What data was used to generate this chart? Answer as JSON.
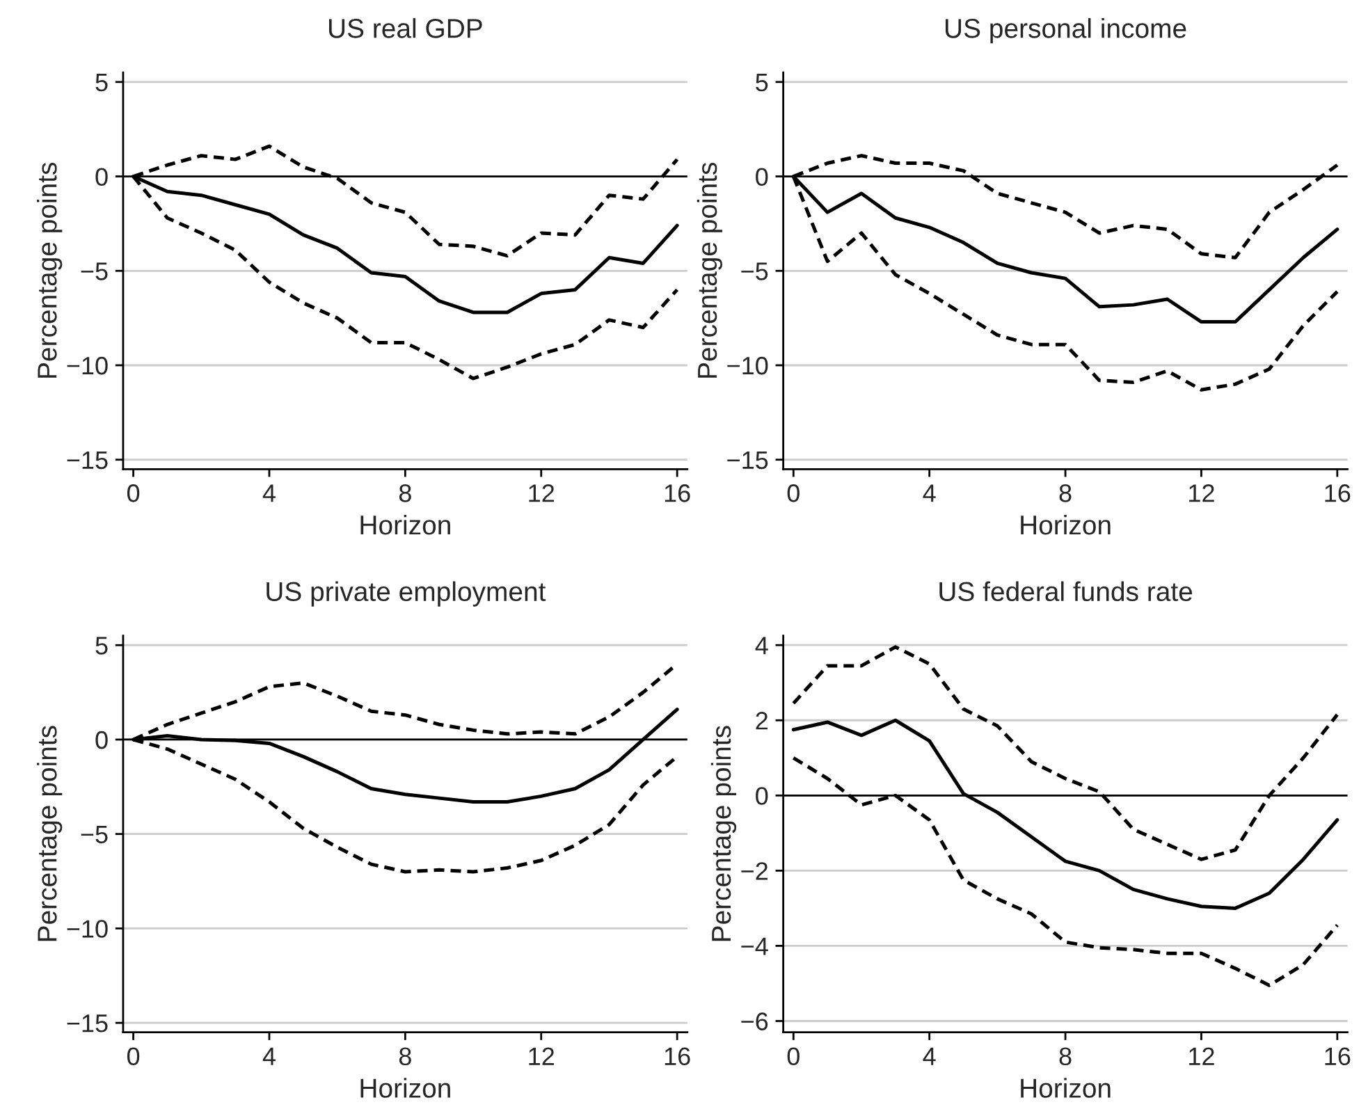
{
  "chart_data": [
    {
      "type": "line",
      "title": "US real GDP",
      "xlabel": "Horizon",
      "ylabel": "Percentage points",
      "x": [
        0,
        1,
        2,
        3,
        4,
        5,
        6,
        7,
        8,
        9,
        10,
        11,
        12,
        13,
        14,
        15,
        16
      ],
      "series": [
        {
          "color": "#000000",
          "line_style": "solid",
          "values": [
            0,
            -0.8,
            -1.0,
            -1.5,
            -2.0,
            -3.1,
            -3.8,
            -5.1,
            -5.3,
            -6.6,
            -7.2,
            -7.2,
            -6.2,
            -6.0,
            -4.3,
            -4.6,
            -2.6
          ]
        },
        {
          "color": "#000000",
          "line_style": "dashed",
          "values": [
            0,
            0.6,
            1.1,
            0.9,
            1.6,
            0.5,
            -0.1,
            -1.4,
            -1.9,
            -3.6,
            -3.7,
            -4.2,
            -3.0,
            -3.1,
            -1.0,
            -1.2,
            0.9
          ]
        },
        {
          "color": "#000000",
          "line_style": "dashed",
          "values": [
            0,
            -2.2,
            -3.0,
            -3.9,
            -5.6,
            -6.7,
            -7.5,
            -8.8,
            -8.8,
            -9.7,
            -10.7,
            -10.1,
            -9.4,
            -8.9,
            -7.6,
            -8.0,
            -6.0
          ]
        }
      ],
      "xlim": [
        -0.3,
        16.3
      ],
      "xticks": [
        0,
        4,
        8,
        12,
        16
      ],
      "ylim": [
        -15.5,
        5.5
      ],
      "yticks": [
        {
          "value": -15,
          "label": "−15"
        },
        {
          "value": -10,
          "label": "−10"
        },
        {
          "value": -5,
          "label": "−5"
        },
        0,
        5
      ],
      "ref_lines": [
        {
          "axis": "y",
          "value": 0,
          "color": "#000000"
        }
      ],
      "grid": "y"
    },
    {
      "type": "line",
      "title": "US personal income",
      "xlabel": "Horizon",
      "ylabel": "Percentage points",
      "x": [
        0,
        1,
        2,
        3,
        4,
        5,
        6,
        7,
        8,
        9,
        10,
        11,
        12,
        13,
        14,
        15,
        16
      ],
      "series": [
        {
          "color": "#000000",
          "line_style": "solid",
          "values": [
            0,
            -1.9,
            -0.9,
            -2.2,
            -2.7,
            -3.5,
            -4.6,
            -5.1,
            -5.4,
            -6.9,
            -6.8,
            -6.5,
            -7.7,
            -7.7,
            -6.0,
            -4.3,
            -2.8
          ]
        },
        {
          "color": "#000000",
          "line_style": "dashed",
          "values": [
            0,
            0.7,
            1.1,
            0.7,
            0.7,
            0.3,
            -0.9,
            -1.4,
            -1.9,
            -3.0,
            -2.6,
            -2.8,
            -4.1,
            -4.3,
            -1.9,
            -0.7,
            0.6
          ]
        },
        {
          "color": "#000000",
          "line_style": "dashed",
          "values": [
            0,
            -4.5,
            -3.0,
            -5.2,
            -6.2,
            -7.3,
            -8.4,
            -8.9,
            -8.9,
            -10.8,
            -10.9,
            -10.3,
            -11.3,
            -11.0,
            -10.2,
            -7.9,
            -6.1
          ]
        }
      ],
      "xlim": [
        -0.3,
        16.3
      ],
      "xticks": [
        0,
        4,
        8,
        12,
        16
      ],
      "ylim": [
        -15.5,
        5.5
      ],
      "yticks": [
        {
          "value": -15,
          "label": "−15"
        },
        {
          "value": -10,
          "label": "−10"
        },
        {
          "value": -5,
          "label": "−5"
        },
        0,
        5
      ],
      "ref_lines": [
        {
          "axis": "y",
          "value": 0,
          "color": "#000000"
        }
      ],
      "grid": "y"
    },
    {
      "type": "line",
      "title": "US private employment",
      "xlabel": "Horizon",
      "ylabel": "Percentage points",
      "x": [
        0,
        1,
        2,
        3,
        4,
        5,
        6,
        7,
        8,
        9,
        10,
        11,
        12,
        13,
        14,
        15,
        16
      ],
      "series": [
        {
          "color": "#000000",
          "line_style": "solid",
          "values": [
            0,
            0.2,
            0,
            -0.05,
            -0.2,
            -0.9,
            -1.7,
            -2.6,
            -2.9,
            -3.1,
            -3.3,
            -3.3,
            -3.0,
            -2.6,
            -1.6,
            0.0,
            1.6
          ]
        },
        {
          "color": "#000000",
          "line_style": "dashed",
          "values": [
            0,
            0.8,
            1.4,
            2.0,
            2.8,
            3.0,
            2.3,
            1.5,
            1.3,
            0.8,
            0.5,
            0.3,
            0.4,
            0.3,
            1.2,
            2.5,
            4.0
          ]
        },
        {
          "color": "#000000",
          "line_style": "dashed",
          "values": [
            0,
            -0.5,
            -1.3,
            -2.1,
            -3.3,
            -4.7,
            -5.7,
            -6.6,
            -7.0,
            -6.9,
            -7.0,
            -6.8,
            -6.4,
            -5.6,
            -4.5,
            -2.4,
            -0.9
          ]
        }
      ],
      "xlim": [
        -0.3,
        16.3
      ],
      "xticks": [
        0,
        4,
        8,
        12,
        16
      ],
      "ylim": [
        -15.5,
        5.5
      ],
      "yticks": [
        {
          "value": -15,
          "label": "−15"
        },
        {
          "value": -10,
          "label": "−10"
        },
        {
          "value": -5,
          "label": "−5"
        },
        0,
        5
      ],
      "ref_lines": [
        {
          "axis": "y",
          "value": 0,
          "color": "#000000"
        }
      ],
      "grid": "y"
    },
    {
      "type": "line",
      "title": "US federal funds rate",
      "xlabel": "Horizon",
      "ylabel": "Percentage points",
      "x": [
        0,
        1,
        2,
        3,
        4,
        5,
        6,
        7,
        8,
        9,
        10,
        11,
        12,
        13,
        14,
        15,
        16
      ],
      "series": [
        {
          "color": "#000000",
          "line_style": "solid",
          "values": [
            1.75,
            1.95,
            1.6,
            2.0,
            1.45,
            0.05,
            -0.45,
            -1.1,
            -1.75,
            -2.0,
            -2.5,
            -2.75,
            -2.95,
            -3.0,
            -2.6,
            -1.7,
            -0.65
          ]
        },
        {
          "color": "#000000",
          "line_style": "dashed",
          "values": [
            2.45,
            3.45,
            3.45,
            3.95,
            3.5,
            2.3,
            1.85,
            0.9,
            0.45,
            0.1,
            -0.9,
            -1.3,
            -1.7,
            -1.45,
            0.0,
            1.0,
            2.15
          ]
        },
        {
          "color": "#000000",
          "line_style": "dashed",
          "values": [
            1.0,
            0.45,
            -0.25,
            0.0,
            -0.65,
            -2.25,
            -2.75,
            -3.15,
            -3.9,
            -4.05,
            -4.1,
            -4.2,
            -4.2,
            -4.6,
            -5.05,
            -4.5,
            -3.45
          ]
        }
      ],
      "xlim": [
        -0.3,
        16.3
      ],
      "xticks": [
        0,
        4,
        8,
        12,
        16
      ],
      "ylim": [
        -6.3,
        4.25
      ],
      "yticks": [
        {
          "value": -6,
          "label": "−6"
        },
        {
          "value": -4,
          "label": "−4"
        },
        {
          "value": -2,
          "label": "−2"
        },
        0,
        2,
        4
      ],
      "ref_lines": [
        {
          "axis": "y",
          "value": 0,
          "color": "#000000"
        }
      ],
      "grid": "y"
    }
  ]
}
